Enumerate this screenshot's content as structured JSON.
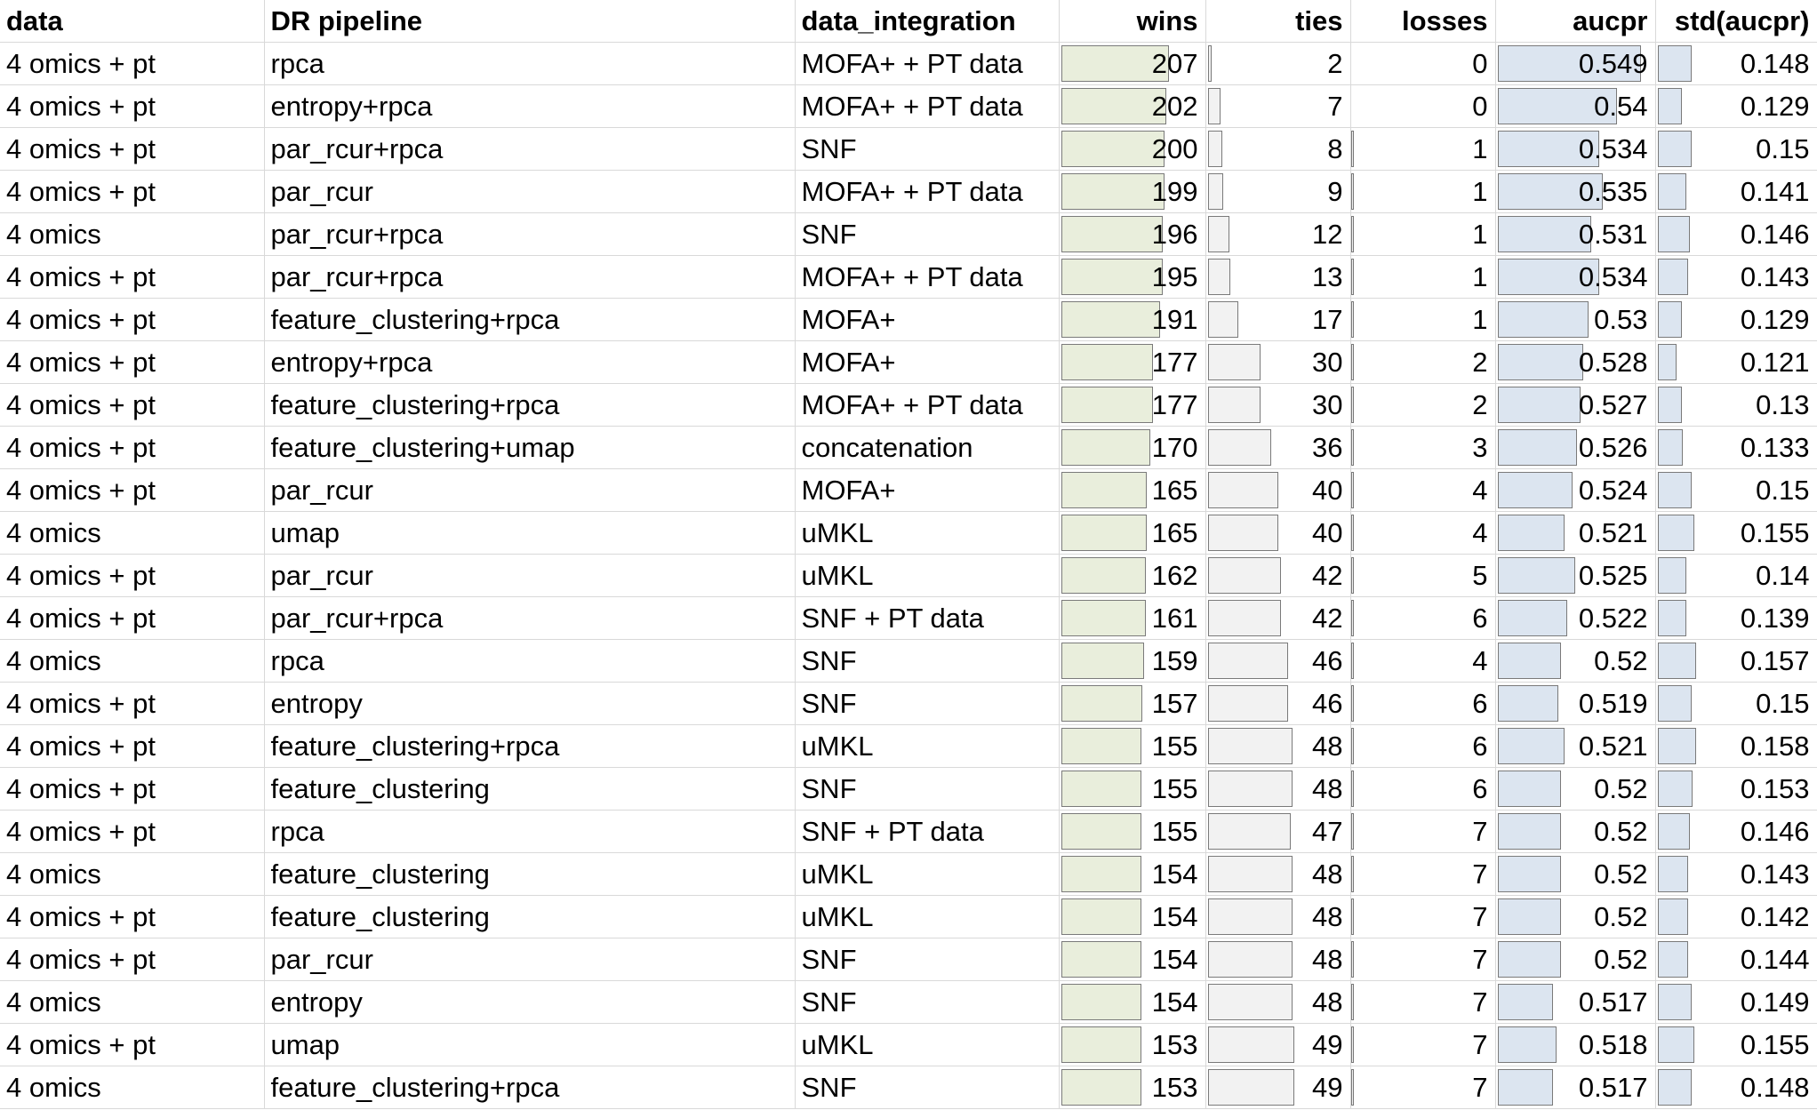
{
  "headers": {
    "data": "data",
    "dr_pipeline": "DR pipeline",
    "data_integration": "data_integration",
    "wins": "wins",
    "ties": "ties",
    "losses": "losses",
    "aucpr": "aucpr",
    "std_aucpr": "std(aucpr)"
  },
  "colors": {
    "wins_bar": "#e9eedc",
    "ties_bar": "#f2f2f2",
    "losses_bar": "#f2f2f2",
    "aucpr_bar": "#dce5f0",
    "std_bar": "#dce5f0",
    "bar_border": "#7a7a7a",
    "gridline": "#d9d9d9"
  },
  "rows": [
    {
      "data": "4 omics + pt",
      "dr": "rpca",
      "integration": "MOFA+ + PT data",
      "wins": "207",
      "ties": "2",
      "losses": "0",
      "aucpr": "0.549",
      "std": "0.148"
    },
    {
      "data": "4 omics + pt",
      "dr": "entropy+rpca",
      "integration": "MOFA+ + PT data",
      "wins": "202",
      "ties": "7",
      "losses": "0",
      "aucpr": "0.54",
      "std": "0.129"
    },
    {
      "data": "4 omics + pt",
      "dr": "par_rcur+rpca",
      "integration": "SNF",
      "wins": "200",
      "ties": "8",
      "losses": "1",
      "aucpr": "0.534",
      "std": "0.15"
    },
    {
      "data": "4 omics + pt",
      "dr": "par_rcur",
      "integration": "MOFA+ + PT data",
      "wins": "199",
      "ties": "9",
      "losses": "1",
      "aucpr": "0.535",
      "std": "0.141"
    },
    {
      "data": "4 omics",
      "dr": "par_rcur+rpca",
      "integration": "SNF",
      "wins": "196",
      "ties": "12",
      "losses": "1",
      "aucpr": "0.531",
      "std": "0.146"
    },
    {
      "data": "4 omics + pt",
      "dr": "par_rcur+rpca",
      "integration": "MOFA+ + PT data",
      "wins": "195",
      "ties": "13",
      "losses": "1",
      "aucpr": "0.534",
      "std": "0.143"
    },
    {
      "data": "4 omics + pt",
      "dr": "feature_clustering+rpca",
      "integration": "MOFA+",
      "wins": "191",
      "ties": "17",
      "losses": "1",
      "aucpr": "0.53",
      "std": "0.129"
    },
    {
      "data": "4 omics + pt",
      "dr": "entropy+rpca",
      "integration": "MOFA+",
      "wins": "177",
      "ties": "30",
      "losses": "2",
      "aucpr": "0.528",
      "std": "0.121"
    },
    {
      "data": "4 omics + pt",
      "dr": "feature_clustering+rpca",
      "integration": "MOFA+ + PT data",
      "wins": "177",
      "ties": "30",
      "losses": "2",
      "aucpr": "0.527",
      "std": "0.13"
    },
    {
      "data": "4 omics + pt",
      "dr": "feature_clustering+umap",
      "integration": "concatenation",
      "wins": "170",
      "ties": "36",
      "losses": "3",
      "aucpr": "0.526",
      "std": "0.133"
    },
    {
      "data": "4 omics + pt",
      "dr": "par_rcur",
      "integration": "MOFA+",
      "wins": "165",
      "ties": "40",
      "losses": "4",
      "aucpr": "0.524",
      "std": "0.15"
    },
    {
      "data": "4 omics",
      "dr": "umap",
      "integration": "uMKL",
      "wins": "165",
      "ties": "40",
      "losses": "4",
      "aucpr": "0.521",
      "std": "0.155"
    },
    {
      "data": "4 omics + pt",
      "dr": "par_rcur",
      "integration": "uMKL",
      "wins": "162",
      "ties": "42",
      "losses": "5",
      "aucpr": "0.525",
      "std": "0.14"
    },
    {
      "data": "4 omics + pt",
      "dr": "par_rcur+rpca",
      "integration": "SNF + PT data",
      "wins": "161",
      "ties": "42",
      "losses": "6",
      "aucpr": "0.522",
      "std": "0.139"
    },
    {
      "data": "4 omics",
      "dr": "rpca",
      "integration": "SNF",
      "wins": "159",
      "ties": "46",
      "losses": "4",
      "aucpr": "0.52",
      "std": "0.157"
    },
    {
      "data": "4 omics + pt",
      "dr": "entropy",
      "integration": "SNF",
      "wins": "157",
      "ties": "46",
      "losses": "6",
      "aucpr": "0.519",
      "std": "0.15"
    },
    {
      "data": "4 omics + pt",
      "dr": "feature_clustering+rpca",
      "integration": "uMKL",
      "wins": "155",
      "ties": "48",
      "losses": "6",
      "aucpr": "0.521",
      "std": "0.158"
    },
    {
      "data": "4 omics + pt",
      "dr": "feature_clustering",
      "integration": "SNF",
      "wins": "155",
      "ties": "48",
      "losses": "6",
      "aucpr": "0.52",
      "std": "0.153"
    },
    {
      "data": "4 omics + pt",
      "dr": "rpca",
      "integration": "SNF + PT data",
      "wins": "155",
      "ties": "47",
      "losses": "7",
      "aucpr": "0.52",
      "std": "0.146"
    },
    {
      "data": "4 omics",
      "dr": "feature_clustering",
      "integration": "uMKL",
      "wins": "154",
      "ties": "48",
      "losses": "7",
      "aucpr": "0.52",
      "std": "0.143"
    },
    {
      "data": "4 omics + pt",
      "dr": "feature_clustering",
      "integration": "uMKL",
      "wins": "154",
      "ties": "48",
      "losses": "7",
      "aucpr": "0.52",
      "std": "0.142"
    },
    {
      "data": "4 omics + pt",
      "dr": "par_rcur",
      "integration": "SNF",
      "wins": "154",
      "ties": "48",
      "losses": "7",
      "aucpr": "0.52",
      "std": "0.144"
    },
    {
      "data": "4 omics",
      "dr": "entropy",
      "integration": "SNF",
      "wins": "154",
      "ties": "48",
      "losses": "7",
      "aucpr": "0.517",
      "std": "0.149"
    },
    {
      "data": "4 omics + pt",
      "dr": "umap",
      "integration": "uMKL",
      "wins": "153",
      "ties": "49",
      "losses": "7",
      "aucpr": "0.518",
      "std": "0.155"
    },
    {
      "data": "4 omics",
      "dr": "feature_clustering+rpca",
      "integration": "SNF",
      "wins": "153",
      "ties": "49",
      "losses": "7",
      "aucpr": "0.517",
      "std": "0.148"
    }
  ]
}
